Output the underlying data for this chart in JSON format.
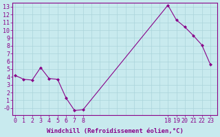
{
  "x": [
    0,
    1,
    2,
    3,
    4,
    5,
    6,
    7,
    8,
    18,
    19,
    20,
    21,
    22,
    23
  ],
  "y": [
    4.2,
    3.7,
    3.6,
    5.2,
    3.8,
    3.7,
    1.3,
    -0.3,
    -0.2,
    13.2,
    11.3,
    10.4,
    9.3,
    8.1,
    5.6
  ],
  "xticks": [
    0,
    1,
    2,
    3,
    4,
    5,
    6,
    7,
    8,
    18,
    19,
    20,
    21,
    22,
    23
  ],
  "yticks": [
    0,
    1,
    2,
    3,
    4,
    5,
    6,
    7,
    8,
    9,
    10,
    11,
    12,
    13
  ],
  "ylim": [
    -0.9,
    13.5
  ],
  "xlim": [
    -0.3,
    23.8
  ],
  "xlabel": "Windchill (Refroidissement éolien,°C)",
  "line_color": "#880088",
  "marker": "D",
  "marker_size": 2,
  "bg_color": "#c8eaee",
  "grid_color": "#aad4da",
  "tick_color": "#880088",
  "label_color": "#880088",
  "font_size": 6.0,
  "xlabel_fontsize": 6.5
}
